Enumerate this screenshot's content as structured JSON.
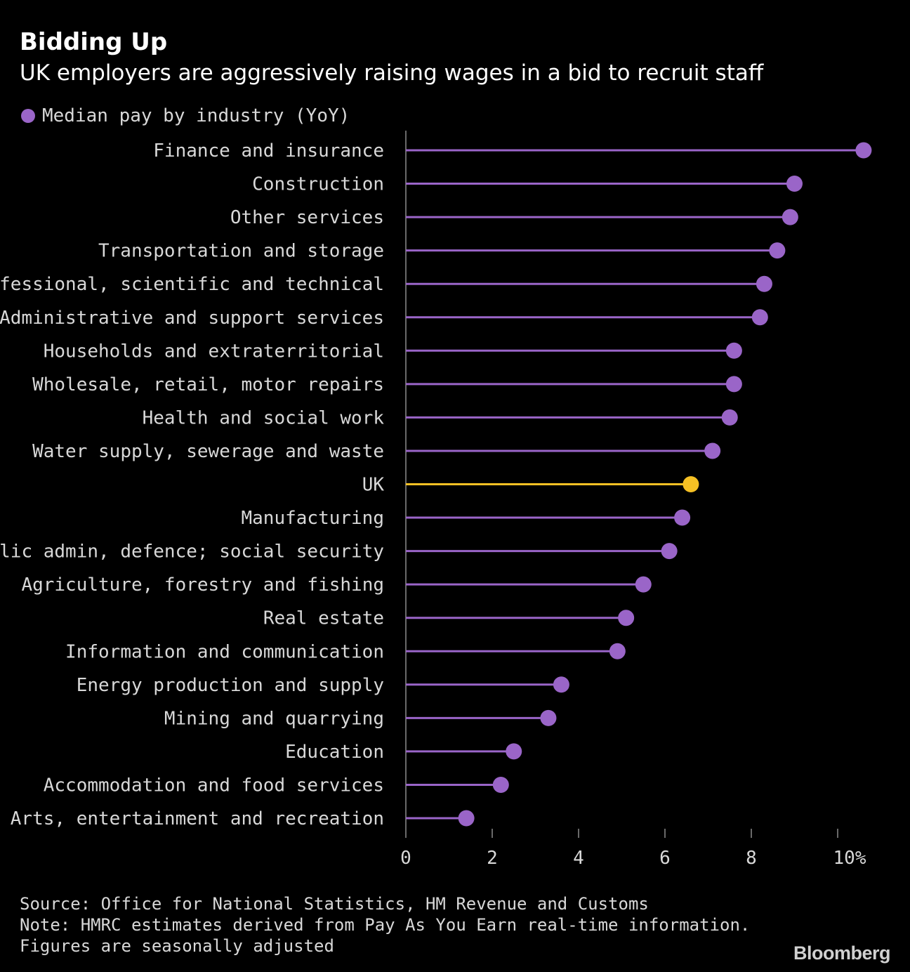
{
  "header": {
    "title": "Bidding Up",
    "subtitle": "UK employers are aggressively raising wages in a bid to recruit staff"
  },
  "legend": {
    "label": "Median pay by industry (YoY)"
  },
  "footer": {
    "source": "Source: Office for National Statistics, HM Revenue and Customs",
    "note": "Note: HMRC estimates derived from Pay As You Earn real-time information.",
    "note2": "Figures are seasonally adjusted",
    "brand": "Bloomberg"
  },
  "colors": {
    "series": "#9a65c8",
    "highlight": "#f5c024",
    "axis": "#8c8c8c",
    "background": "#000000"
  },
  "chart_data": {
    "type": "lollipop",
    "title": "Bidding Up",
    "subtitle": "UK employers are aggressively raising wages in a bid to recruit staff",
    "series_name": "Median pay by industry (YoY)",
    "unit": "%",
    "xlim": [
      0,
      10
    ],
    "xticks": [
      0,
      2,
      4,
      6,
      8,
      10
    ],
    "xtick_labels": [
      "0",
      "2",
      "4",
      "6",
      "8",
      "10%"
    ],
    "highlight_category": "UK",
    "categories": [
      "Finance and insurance",
      "Construction",
      "Other services",
      "Transportation and storage",
      "Professional, scientific and technical",
      "Administrative and support services",
      "Households and extraterritorial",
      "Wholesale, retail, motor repairs",
      "Health and social work",
      "Water supply, sewerage and waste",
      "UK",
      "Manufacturing",
      "Public admin, defence; social security",
      "Agriculture, forestry and fishing",
      "Real estate",
      "Information and communication",
      "Energy production and supply",
      "Mining and quarrying",
      "Education",
      "Accommodation and food services",
      "Arts, entertainment and recreation"
    ],
    "values": [
      10.6,
      9.0,
      8.9,
      8.6,
      8.3,
      8.2,
      7.6,
      7.6,
      7.5,
      7.1,
      6.6,
      6.4,
      6.1,
      5.5,
      5.1,
      4.9,
      3.6,
      3.3,
      2.5,
      2.2,
      1.4
    ]
  }
}
